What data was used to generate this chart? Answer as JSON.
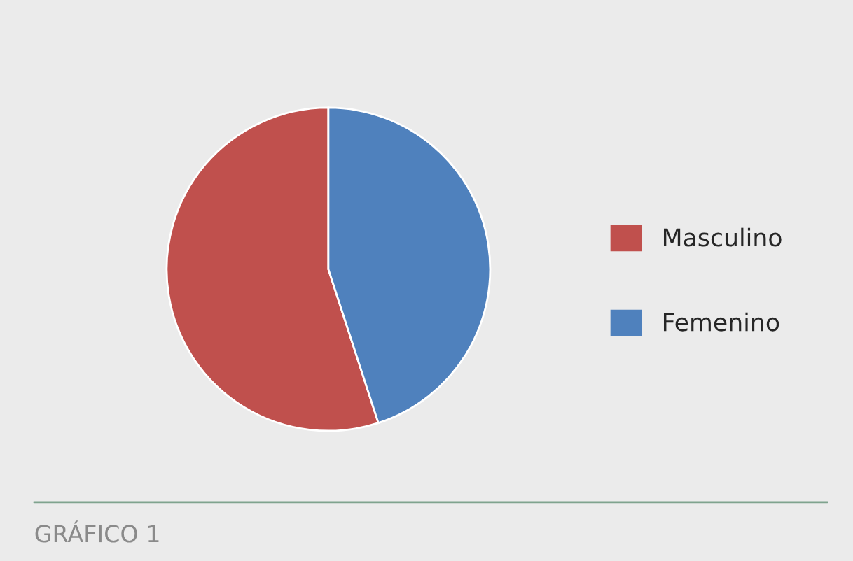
{
  "chart_data": {
    "type": "pie",
    "categories": [
      "Masculino",
      "Femenino"
    ],
    "values": [
      55,
      45
    ],
    "colors": [
      "#c0504d",
      "#4f81bd"
    ],
    "legend": "right",
    "annotations": [
      "GRÁFICO 1"
    ]
  }
}
